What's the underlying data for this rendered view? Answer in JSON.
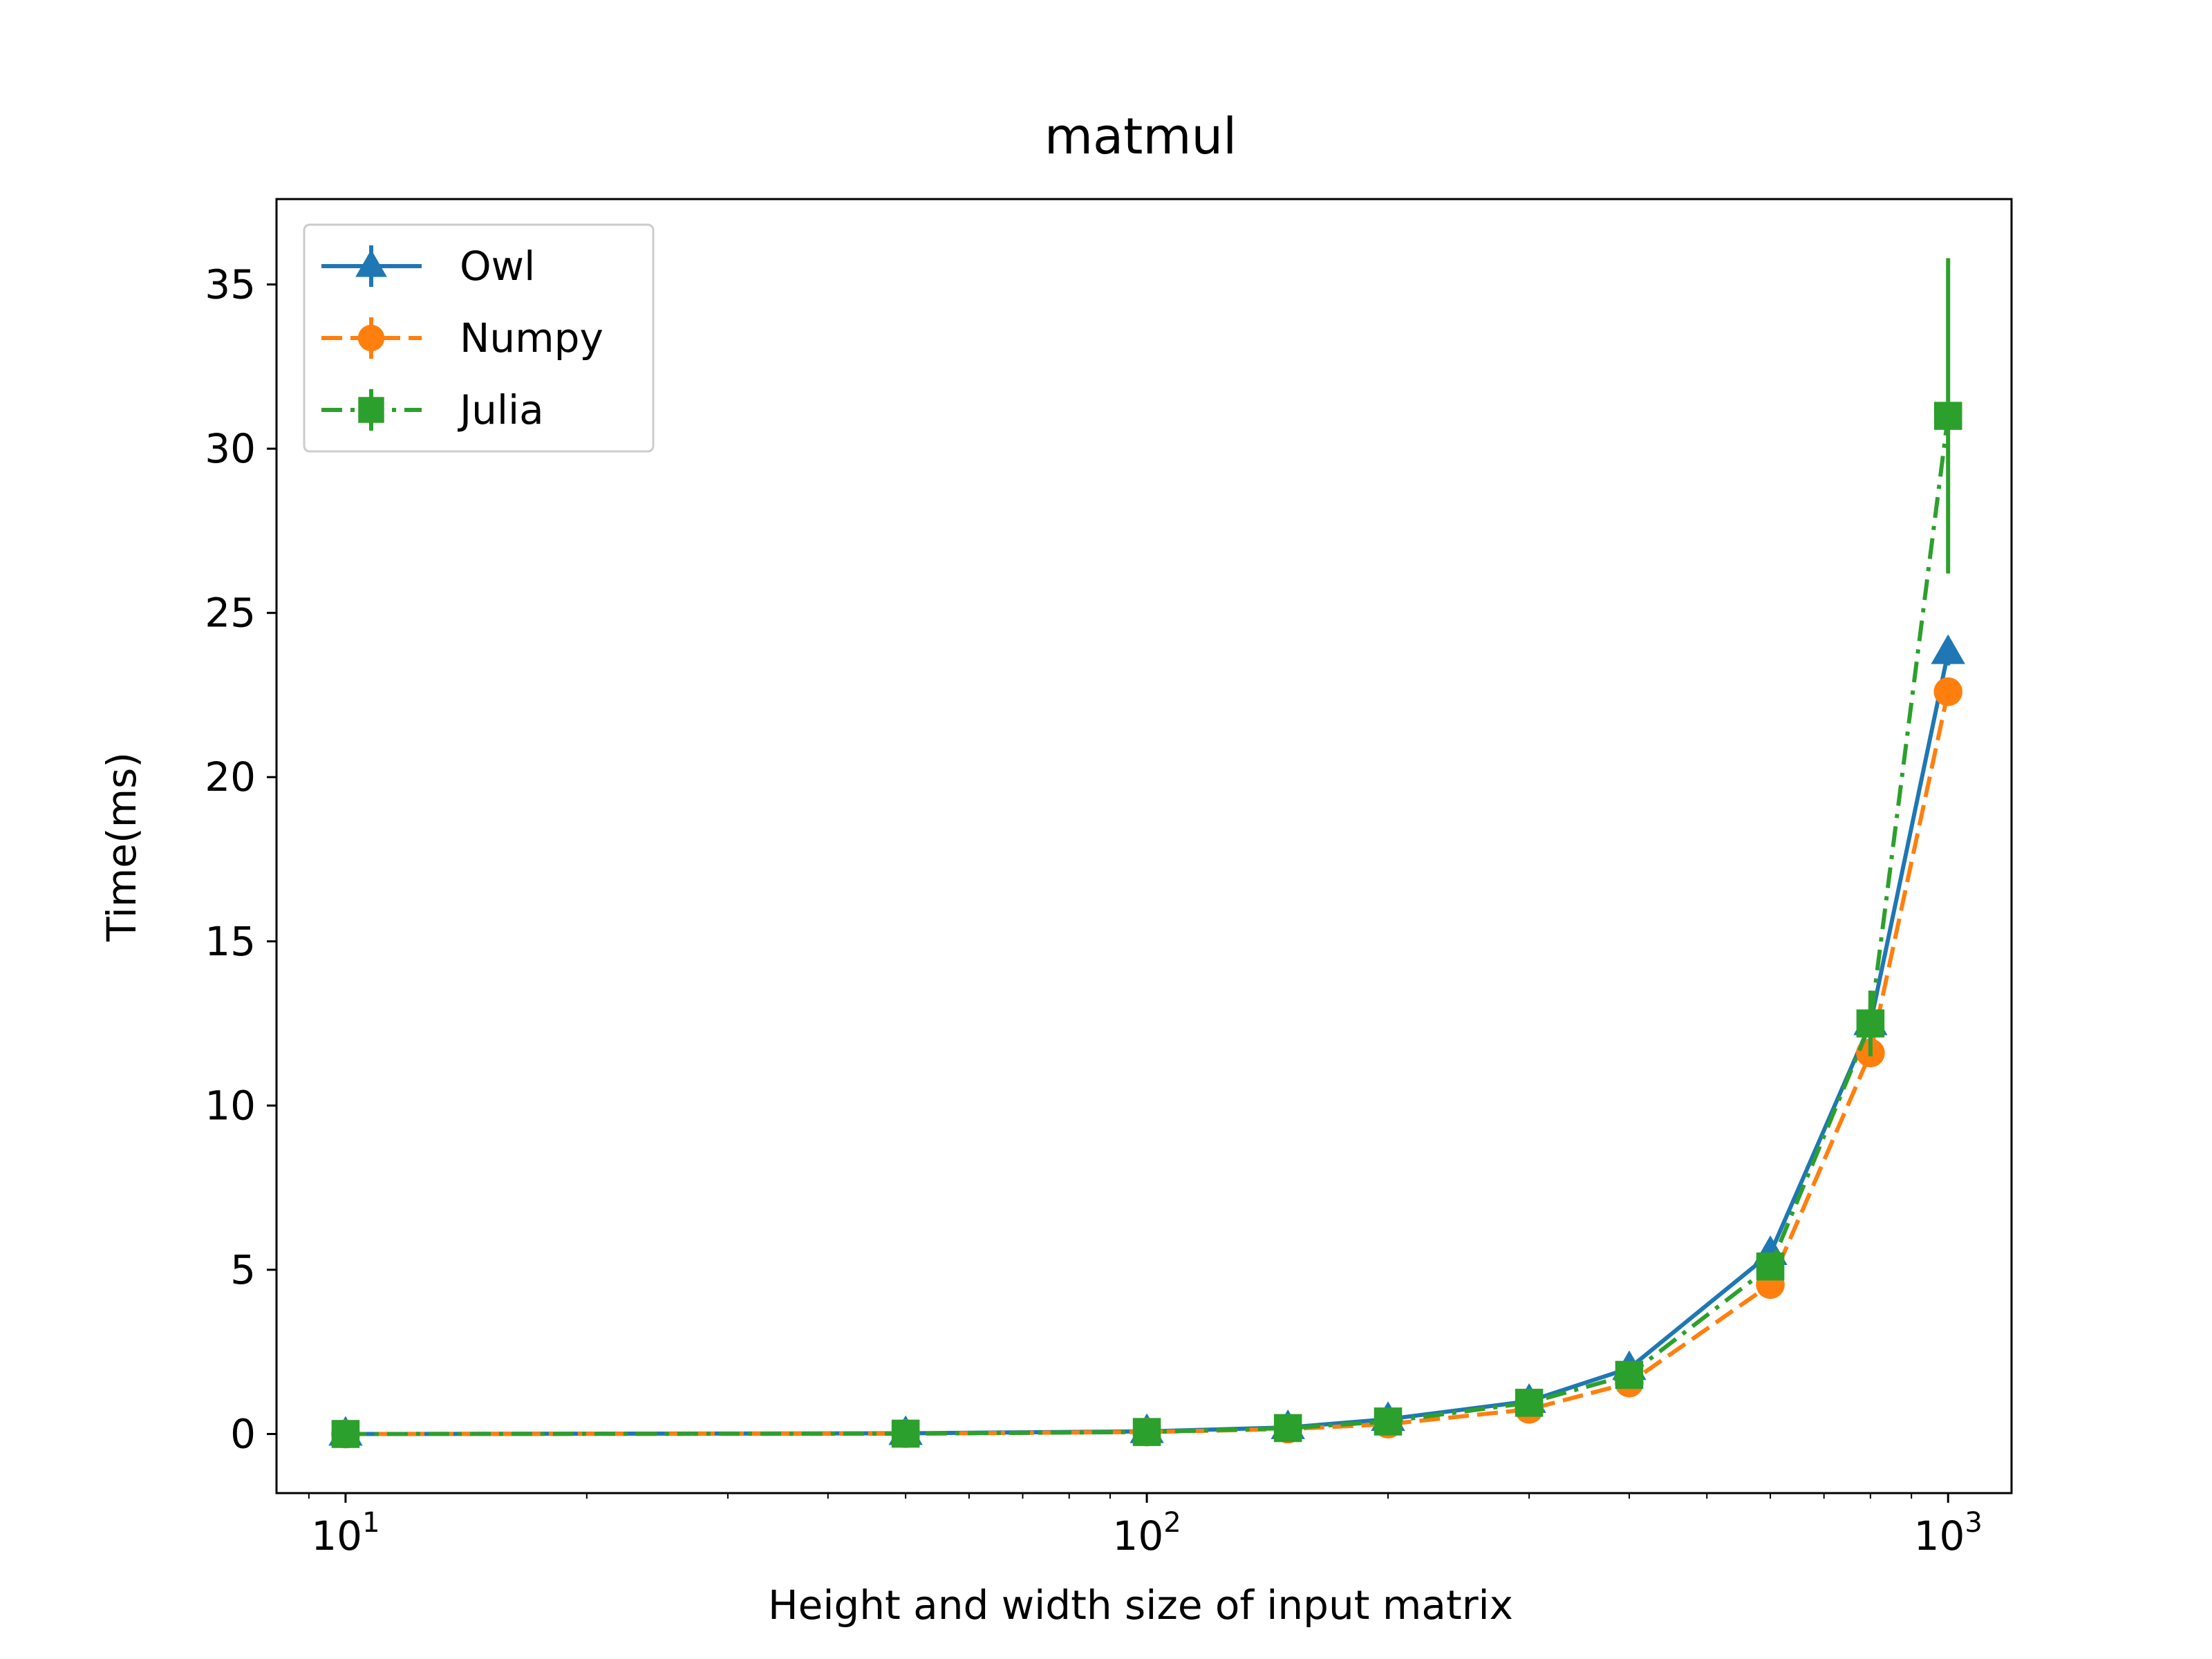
{
  "chart_data": {
    "type": "line",
    "title": "matmul",
    "xlabel": "Height and width size of input matrix",
    "ylabel": "Time(ms)",
    "xscale": "log",
    "xlim": [
      8.2,
      1200
    ],
    "ylim": [
      -1.8,
      37.6
    ],
    "x_ticks": [
      {
        "value": 10,
        "base": "10",
        "exp": "1"
      },
      {
        "value": 100,
        "base": "10",
        "exp": "2"
      },
      {
        "value": 1000,
        "base": "10",
        "exp": "3"
      }
    ],
    "y_ticks": [
      0,
      5,
      10,
      15,
      20,
      25,
      30,
      35
    ],
    "grid": false,
    "legend_position": "top-left",
    "x": [
      10,
      50,
      100,
      150,
      200,
      300,
      400,
      600,
      800,
      1000
    ],
    "series": [
      {
        "name": "Owl",
        "color": "#1f77b4",
        "marker": "triangle",
        "linestyle": "solid",
        "values": [
          0.0,
          0.02,
          0.08,
          0.2,
          0.45,
          1.0,
          2.0,
          5.5,
          12.5,
          23.8
        ],
        "errors": [
          0.0,
          0.0,
          0.0,
          0.05,
          0.1,
          0.15,
          0.2,
          0.3,
          0.6,
          0.4
        ]
      },
      {
        "name": "Numpy",
        "color": "#ff7f0e",
        "marker": "circle",
        "linestyle": "dashed",
        "values": [
          0.0,
          0.01,
          0.06,
          0.15,
          0.3,
          0.75,
          1.55,
          4.55,
          11.6,
          22.6
        ],
        "errors": [
          0.0,
          0.0,
          0.0,
          0.03,
          0.05,
          0.1,
          0.15,
          0.25,
          0.4,
          0.3
        ]
      },
      {
        "name": "Julia",
        "color": "#2ca02c",
        "marker": "square",
        "linestyle": "dashdot",
        "values": [
          0.0,
          0.01,
          0.06,
          0.18,
          0.38,
          0.95,
          1.8,
          5.1,
          12.5,
          31.0
        ],
        "errors": [
          0.0,
          0.0,
          0.0,
          0.05,
          0.1,
          0.15,
          0.2,
          0.4,
          1.0,
          4.8
        ]
      }
    ]
  }
}
